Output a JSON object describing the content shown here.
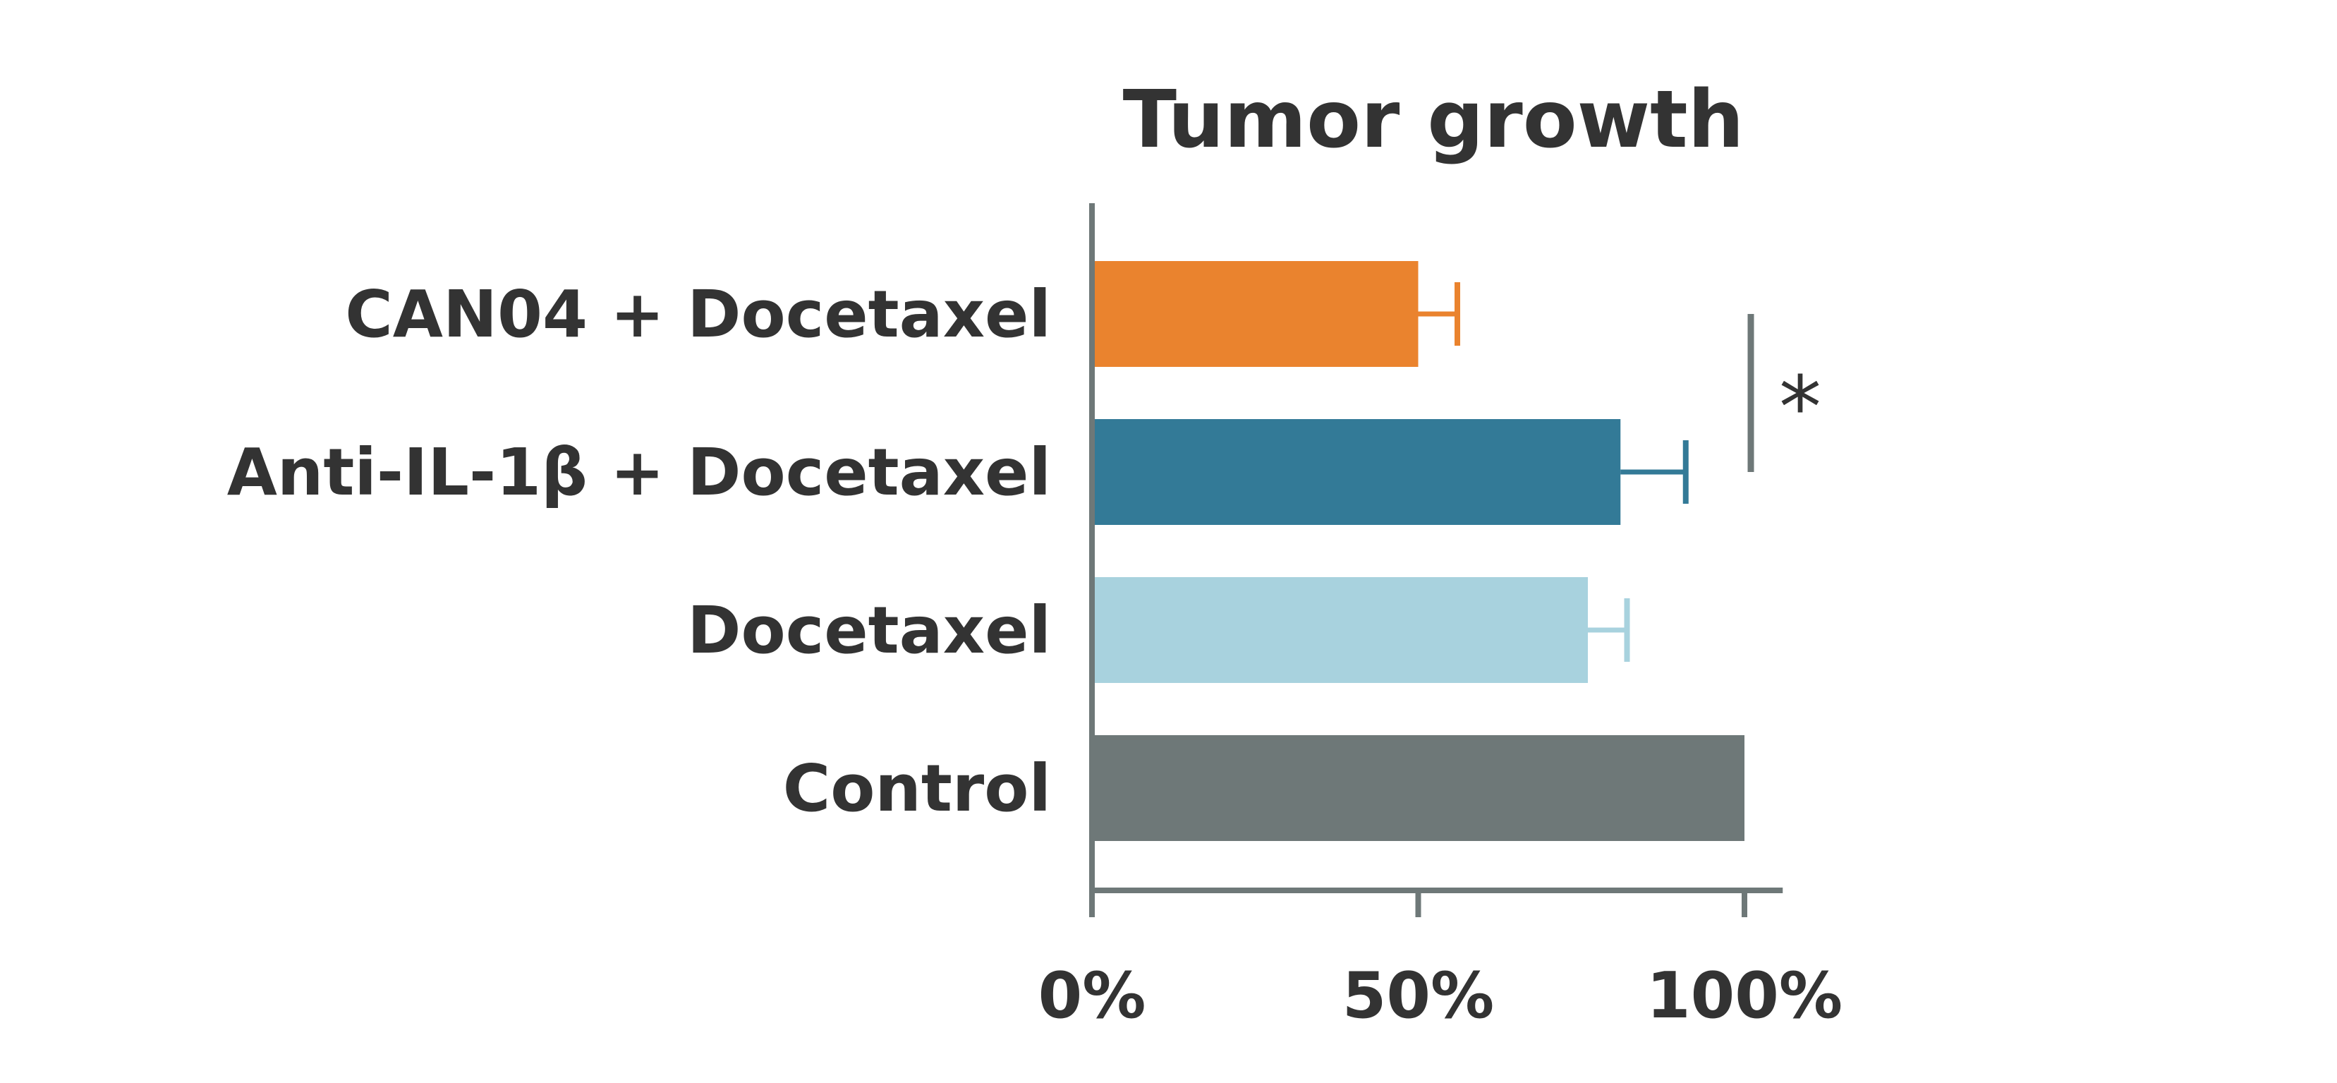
{
  "chart_data": {
    "type": "bar",
    "orientation": "horizontal",
    "title": "Tumor growth",
    "xlabel": "",
    "ylabel": "",
    "categories": [
      "CAN04 + Docetaxel",
      "Anti-IL-1β + Docetaxel",
      "Docetaxel",
      "Control"
    ],
    "values": [
      50,
      81,
      76,
      100
    ],
    "errors": [
      6,
      10,
      6,
      null
    ],
    "colors": [
      "#EA832E",
      "#337A97",
      "#A8D2DE",
      "#6E7878"
    ],
    "xlim": [
      0,
      105
    ],
    "xticks": [
      0,
      50,
      100
    ],
    "xtick_labels": [
      "0%",
      "50%",
      "100%"
    ],
    "axis_color": "#6E7878",
    "significance": {
      "between": [
        "CAN04 + Docetaxel",
        "Anti-IL-1β + Docetaxel"
      ],
      "marker": "*"
    },
    "grid": false,
    "legend": "none"
  }
}
